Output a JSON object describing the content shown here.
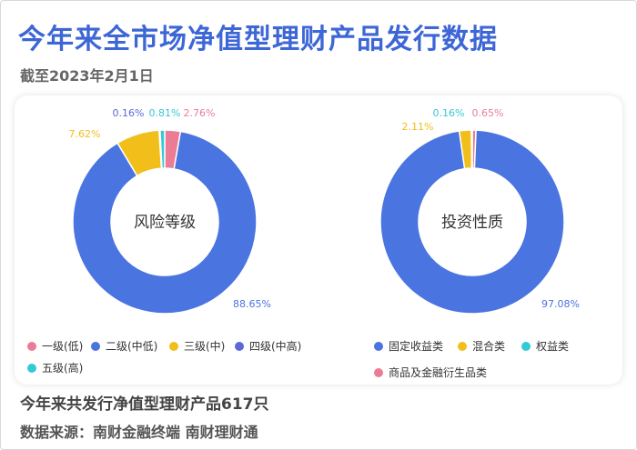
{
  "header": {
    "title": "今年来全市场净值型理财产品发行数据",
    "subtitle": "截至2023年2月1日"
  },
  "chart_data": [
    {
      "type": "pie",
      "center_label": "风险等级",
      "slices": [
        {
          "label": "一级(低)",
          "value": 2.76,
          "display": "2.76%",
          "color": "#ec7b96"
        },
        {
          "label": "二级(中低)",
          "value": 88.65,
          "display": "88.65%",
          "color": "#4a74e0"
        },
        {
          "label": "三级(中)",
          "value": 7.62,
          "display": "7.62%",
          "color": "#f2bf1a"
        },
        {
          "label": "四级(中高)",
          "value": 0.16,
          "display": "0.16%",
          "color": "#5b69d8"
        },
        {
          "label": "五级(高)",
          "value": 0.81,
          "display": "0.81%",
          "color": "#33c9d6"
        }
      ]
    },
    {
      "type": "pie",
      "center_label": "投资性质",
      "slices": [
        {
          "label": "商品及金融衍生品类",
          "value": 0.65,
          "display": "0.65%",
          "color": "#ec7b96"
        },
        {
          "label": "固定收益类",
          "value": 97.08,
          "display": "97.08%",
          "color": "#4a74e0"
        },
        {
          "label": "混合类",
          "value": 2.11,
          "display": "2.11%",
          "color": "#f2bf1a"
        },
        {
          "label": "权益类",
          "value": 0.16,
          "display": "0.16%",
          "color": "#33c9d6"
        }
      ]
    }
  ],
  "legend_left": [
    {
      "label": "一级(低)",
      "color": "#ec7b96"
    },
    {
      "label": "二级(中低)",
      "color": "#4a74e0"
    },
    {
      "label": "三级(中)",
      "color": "#f2bf1a"
    },
    {
      "label": "四级(中高)",
      "color": "#5b69d8"
    },
    {
      "label": "五级(高)",
      "color": "#33c9d6"
    }
  ],
  "legend_right": [
    {
      "label": "固定收益类",
      "color": "#4a74e0"
    },
    {
      "label": "混合类",
      "color": "#f2bf1a"
    },
    {
      "label": "权益类",
      "color": "#33c9d6"
    },
    {
      "label": "商品及金融衍生品类",
      "color": "#ec7b96"
    }
  ],
  "footer": {
    "summary": "今年来共发行净值型理财产品617只",
    "source": "数据来源：南财金融终端 南财理财通"
  }
}
